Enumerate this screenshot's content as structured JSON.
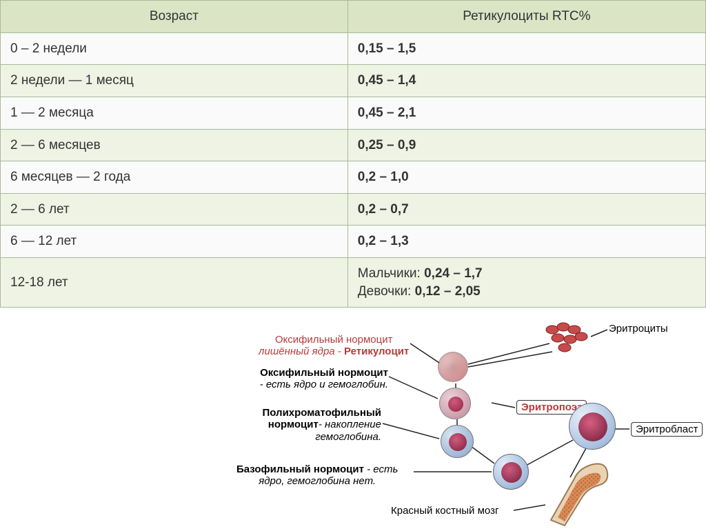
{
  "table": {
    "border_color": "#a9b89a",
    "header_bg": "#dbe5c6",
    "row_alt_bg": "#eef3e4",
    "row_bg": "#fafafa",
    "text_color": "#333333",
    "columns": [
      "Возраст",
      "Ретикулоциты RTC%"
    ],
    "rows": [
      {
        "age": "0 – 2 недели",
        "rtc": "0,15 – 1,5"
      },
      {
        "age": "2 недели — 1 месяц",
        "rtc": "0,45 – 1,4"
      },
      {
        "age": "1 — 2 месяца",
        "rtc": "0,45 – 2,1"
      },
      {
        "age": "2 — 6 месяцев",
        "rtc": "0,25 – 0,9"
      },
      {
        "age": "6 месяцев — 2 года",
        "rtc": "0,2 – 1,0"
      },
      {
        "age": "2 — 6 лет",
        "rtc": "0,2 – 0,7"
      },
      {
        "age": "6 — 12 лет",
        "rtc": "0,2 – 1,3"
      },
      {
        "age": "12-18 лет",
        "rtc_html": "Мальчики: <b>0,24 – 1,7</b><br>Девочки: <b>0,12 – 2,05</b>"
      }
    ]
  },
  "diagram": {
    "title_color": "#b73a3a",
    "accent_color": "#b73a3a",
    "text_color": "#111111",
    "cell_outer": "#9fb9d6",
    "cell_outer_light": "#d8e4f1",
    "nucleus_dark": "#9a2a52",
    "nucleus_mid": "#c04a6e",
    "nucleus_red": "#c33a3a",
    "erythrocyte_fill": "#c84a4a",
    "bone_fill": "#e6c9a8",
    "bone_spongy": "#c77a4a",
    "labels": {
      "erythrocytes": "Эритроциты",
      "retic_title1": "Оксифильный нормоцит",
      "retic_title2": "лишённый ядра - ",
      "retic_title3": "Ретикулоцит",
      "oxyphil_title": "Оксифильный нормоцит",
      "oxyphil_sub": "- есть ядро и гемоглобин.",
      "erythropoiesis": "Эритропоэз",
      "polychrom_title": "Полихроматофильный",
      "polychrom_title2": "нормоцит",
      "polychrom_sub": "- накопление",
      "polychrom_sub2": "гемоглобина.",
      "erythroblast": "Эритробласт",
      "basophil_title": "Базофильный нормоцит",
      "basophil_sub1": " - есть",
      "basophil_sub2": "ядро, гемоглобина нет.",
      "marrow": "Красный костный мозг"
    }
  }
}
